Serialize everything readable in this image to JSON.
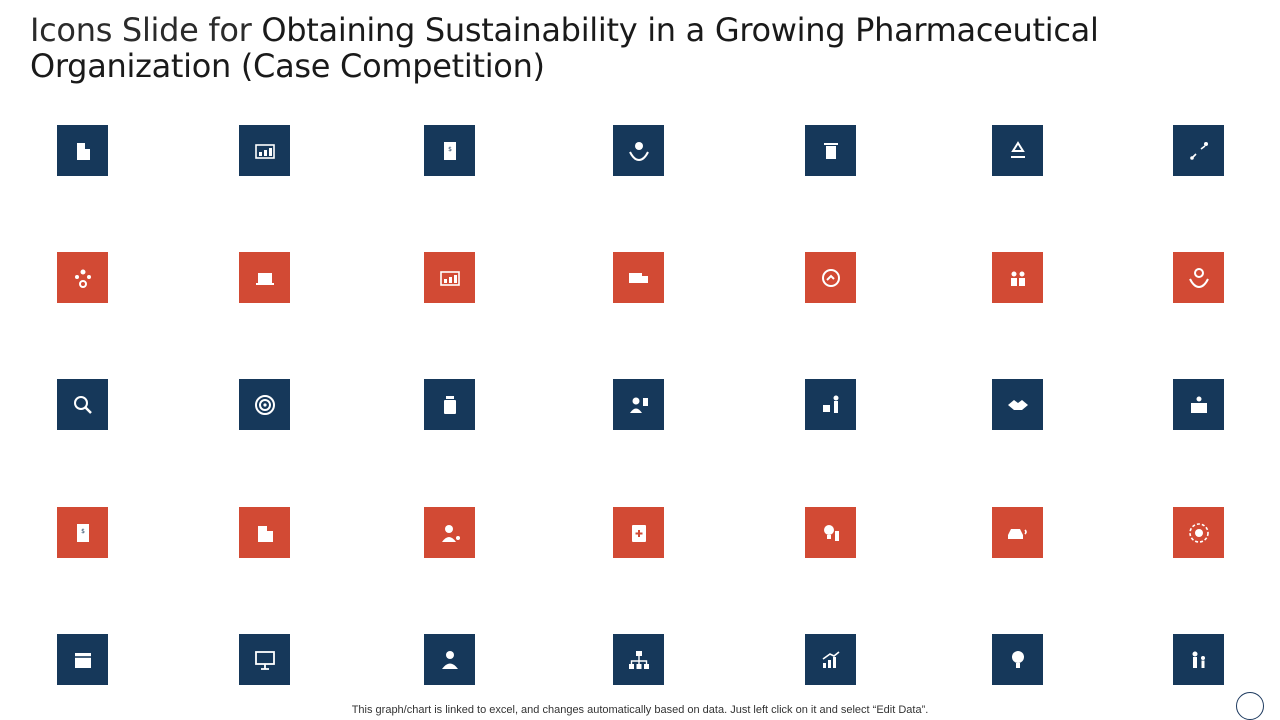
{
  "title": {
    "part1": "Icons Slide for",
    "part2": "Obtaining Sustainability in a Growing Pharmaceutical Organization (Case Competition)"
  },
  "colors": {
    "navy": "#16385a",
    "red": "#d24a34",
    "glyph": "#ffffff"
  },
  "rows": [
    {
      "color": "navy",
      "icons": [
        "building-icon",
        "dashboard-chart-icon",
        "invoice-document-icon",
        "money-hands-icon",
        "recycle-bin-icon",
        "recycle-icon",
        "strategy-plan-icon"
      ]
    },
    {
      "color": "red",
      "icons": [
        "team-gear-icon",
        "rating-laptop-icon",
        "dashboard-chart-icon",
        "delivery-truck-icon",
        "growth-cycle-icon",
        "team-meeting-icon",
        "gear-hands-icon"
      ]
    },
    {
      "color": "navy",
      "icons": [
        "search-analytics-icon",
        "target-icon",
        "medicine-bottle-icon",
        "doctor-medical-icon",
        "waste-disposal-icon",
        "handshake-icon",
        "product-box-icon"
      ]
    },
    {
      "color": "red",
      "icons": [
        "invoice-document-icon",
        "office-building-icon",
        "scientist-icon",
        "medical-kit-icon",
        "idea-bulb-icon",
        "car-emission-icon",
        "gear-cycle-icon"
      ]
    },
    {
      "color": "navy",
      "icons": [
        "calendar-icon",
        "presentation-board-icon",
        "doctor-icon",
        "organization-chart-icon",
        "growth-chart-icon",
        "eco-bulb-icon",
        "family-icon"
      ]
    }
  ],
  "footer": "This graph/chart is linked to excel, and changes automatically based on data. Just left click on it and select “Edit Data”."
}
